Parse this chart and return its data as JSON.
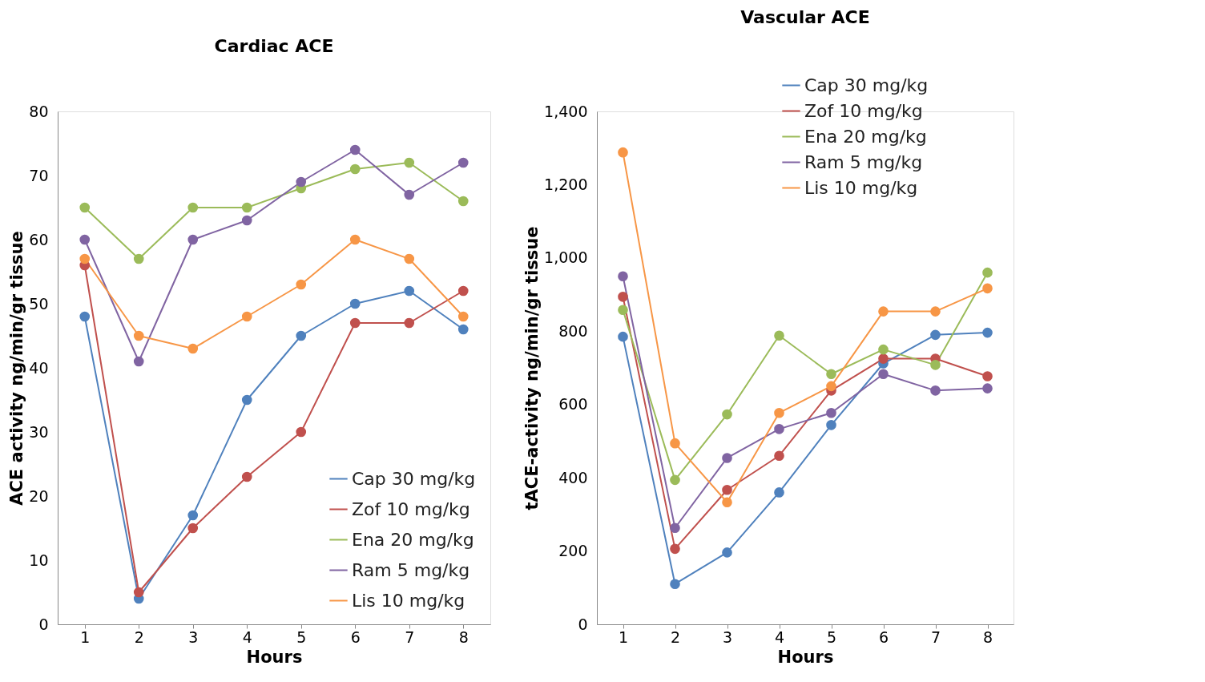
{
  "chart_data": [
    {
      "type": "line",
      "title": "Cardiac ACE",
      "xlabel": "Hours",
      "ylabel": "ACE activity ng/min/gr tissue",
      "categories": [
        "1",
        "2",
        "3",
        "4",
        "5",
        "6",
        "7",
        "8"
      ],
      "ylim": [
        0,
        80
      ],
      "yticks": [
        0,
        10,
        20,
        30,
        40,
        50,
        60,
        70,
        80
      ],
      "grid": false,
      "legend": "bottom right",
      "marker": "circle",
      "line_style": "solid",
      "series": [
        {
          "name": "Cap 30 mg/kg",
          "color": "#4f81bd",
          "values": [
            48,
            4,
            17,
            35,
            45,
            50,
            52,
            46
          ]
        },
        {
          "name": "Zof 10 mg/kg",
          "color": "#c0504d",
          "values": [
            56,
            5,
            15,
            23,
            30,
            47,
            47,
            52
          ]
        },
        {
          "name": "Ena 20 mg/kg",
          "color": "#9bbb59",
          "values": [
            65,
            57,
            65,
            65,
            68,
            71,
            72,
            66
          ]
        },
        {
          "name": "Ram 5 mg/kg",
          "color": "#8064a2",
          "values": [
            60,
            41,
            60,
            63,
            69,
            74,
            67,
            72
          ]
        },
        {
          "name": "Lis 10 mg/kg",
          "color": "#f79646",
          "values": [
            57,
            45,
            43,
            48,
            53,
            60,
            57,
            48
          ]
        }
      ]
    },
    {
      "type": "line",
      "title": "Vascular ACE",
      "xlabel": "Hours",
      "ylabel": "tACE-activity ng/min/gr tissue",
      "categories": [
        "1",
        "2",
        "3",
        "4",
        "5",
        "6",
        "7",
        "8"
      ],
      "ylim": [
        0,
        1400
      ],
      "yticks": [
        {
          "value": 0,
          "label": "0"
        },
        {
          "value": 200,
          "label": "200"
        },
        {
          "value": 400,
          "label": "400"
        },
        {
          "value": 600,
          "label": "600"
        },
        {
          "value": 800,
          "label": "800"
        },
        {
          "value": 1000,
          "label": "1,000"
        },
        {
          "value": 1200,
          "label": "1,200"
        },
        {
          "value": 1400,
          "label": "1,400"
        }
      ],
      "grid": false,
      "legend": "top",
      "marker": "circle",
      "line_style": "solid",
      "series": [
        {
          "name": "Cap 30 mg/kg",
          "color": "#4f81bd",
          "values": [
            785,
            110,
            196,
            360,
            544,
            712,
            790,
            796
          ]
        },
        {
          "name": "Zof 10 mg/kg",
          "color": "#c0504d",
          "values": [
            894,
            206,
            367,
            460,
            638,
            725,
            725,
            677
          ]
        },
        {
          "name": "Ena 20 mg/kg",
          "color": "#9bbb59",
          "values": [
            858,
            394,
            573,
            788,
            683,
            750,
            708,
            960
          ]
        },
        {
          "name": "Ram 5 mg/kg",
          "color": "#8064a2",
          "values": [
            950,
            263,
            454,
            533,
            577,
            683,
            638,
            644
          ]
        },
        {
          "name": "Lis 10 mg/kg",
          "color": "#f79646",
          "values": [
            1288,
            494,
            333,
            577,
            650,
            854,
            854,
            917
          ]
        }
      ]
    }
  ]
}
